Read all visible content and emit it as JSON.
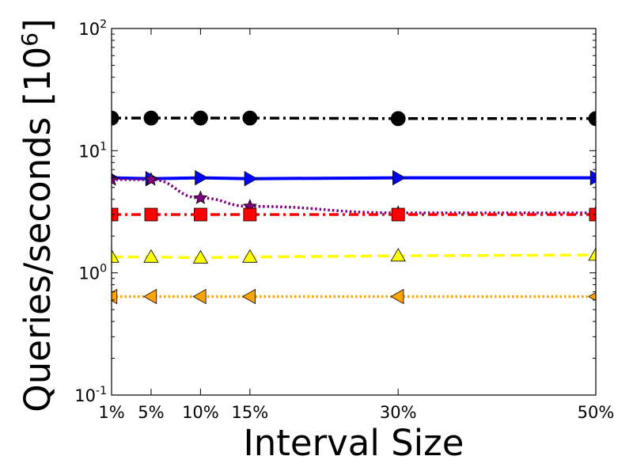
{
  "chart_data": {
    "type": "line",
    "xlabel": "Interval Size",
    "ylabel": "Queries/seconds [10",
    "ylabel_exponent": "6",
    "ylabel_close": "]",
    "x": [
      1,
      5,
      10,
      15,
      30,
      50
    ],
    "x_tick_labels": [
      "1%",
      "5%",
      "10%",
      "15%",
      "30%",
      "50%"
    ],
    "y_scale": "log",
    "ylim": [
      0.1,
      100
    ],
    "y_ticks": [
      {
        "base": "10",
        "exp": "2"
      },
      {
        "base": "10",
        "exp": "1"
      },
      {
        "base": "10",
        "exp": "0"
      },
      {
        "base": "10",
        "exp": "-1"
      }
    ],
    "y_tick_values": [
      100,
      10,
      1,
      0.1
    ],
    "grid": false,
    "legend": "none",
    "series": [
      {
        "color": "#000000",
        "marker": "circle",
        "line": "dashdot",
        "values": [
          18.5,
          18.5,
          18.5,
          18.5,
          18.3,
          18.3
        ]
      },
      {
        "color": "#0000ff",
        "marker": "triangle-right",
        "line": "solid",
        "values": [
          6.0,
          5.9,
          6.0,
          5.9,
          6.0,
          6.0
        ]
      },
      {
        "color": "#800080",
        "marker": "star",
        "line": "dotted",
        "values": [
          5.8,
          5.8,
          4.1,
          3.5,
          3.1,
          3.1
        ]
      },
      {
        "color": "#ff0000",
        "marker": "square",
        "line": "dashdot",
        "values": [
          3.0,
          3.0,
          3.0,
          3.0,
          3.0,
          3.0
        ]
      },
      {
        "color": "#ffff00",
        "marker": "triangle-up",
        "line": "dashed",
        "values": [
          1.35,
          1.35,
          1.33,
          1.35,
          1.38,
          1.4
        ]
      },
      {
        "color": "#ffa500",
        "marker": "triangle-left",
        "line": "dotted",
        "values": [
          0.64,
          0.64,
          0.64,
          0.64,
          0.64,
          0.64
        ]
      }
    ]
  }
}
